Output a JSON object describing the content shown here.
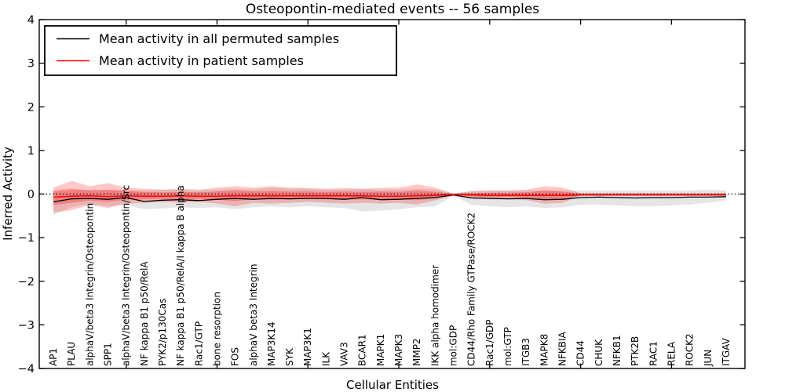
{
  "chart_data": {
    "type": "line",
    "title": "Osteopontin-mediated events -- 56 samples",
    "xlabel": "Cellular Entities",
    "ylabel": "Inferred Activity",
    "ylim": [
      -4,
      4
    ],
    "yticks": [
      4,
      3,
      2,
      1,
      0,
      -1,
      -2,
      -3,
      -4
    ],
    "ytick_labels": [
      "4",
      "3",
      "2",
      "1",
      "0",
      "−1",
      "−2",
      "−3",
      "−4"
    ],
    "grid": false,
    "zero_line": {
      "y": 0,
      "style": "dotted",
      "color": "#000000"
    },
    "legend": {
      "position": "upper-left"
    },
    "categories": [
      "AP1",
      "PLAU",
      "alphaV/beta3 Integrin/Osteopontin",
      "SPP1",
      "alphaV/beta3 Integrin/Osteopontin/Src",
      "NF kappa B1 p50/RelA",
      "PYK2/p130Cas",
      "NF kappa B1 p50/RelA/I kappa B alpha",
      "Rac1/GTP",
      "bone resorption",
      "FOS",
      "alphaV beta3 Integrin",
      "MAP3K14",
      "SYK",
      "MAP3K1",
      "ILK",
      "VAV3",
      "BCAR1",
      "MAPK1",
      "MAPK3",
      "MMP2",
      "IKK alpha homodimer",
      "mol:GDP",
      "CD44/Rho Family GTPase/ROCK2",
      "Rac1/GDP",
      "mol:GTP",
      "ITGB3",
      "MAPK8",
      "NFKBIA",
      "CD44",
      "CHUK",
      "NFKB1",
      "PTK2B",
      "RAC1",
      "RELA",
      "ROCK2",
      "JUN",
      "ITGAV"
    ],
    "series": [
      {
        "name": "Mean activity in all permuted samples",
        "color": "#000000",
        "values": [
          -0.18,
          -0.11,
          -0.1,
          -0.12,
          -0.08,
          -0.17,
          -0.14,
          -0.13,
          -0.15,
          -0.12,
          -0.1,
          -0.12,
          -0.1,
          -0.11,
          -0.1,
          -0.1,
          -0.12,
          -0.08,
          -0.13,
          -0.12,
          -0.1,
          -0.08,
          -0.02,
          -0.09,
          -0.1,
          -0.11,
          -0.1,
          -0.13,
          -0.12,
          -0.08,
          -0.07,
          -0.08,
          -0.09,
          -0.08,
          -0.08,
          -0.07,
          -0.07,
          -0.06
        ]
      },
      {
        "name": "Mean activity in patient samples",
        "color": "#ff0000",
        "values": [
          -0.07,
          -0.05,
          -0.04,
          -0.06,
          -0.04,
          -0.05,
          -0.05,
          -0.04,
          -0.05,
          -0.05,
          -0.04,
          -0.04,
          -0.04,
          -0.04,
          -0.04,
          -0.04,
          -0.04,
          -0.04,
          -0.05,
          -0.05,
          -0.04,
          -0.03,
          -0.01,
          -0.02,
          -0.03,
          -0.03,
          -0.03,
          -0.03,
          -0.03,
          -0.02,
          -0.02,
          -0.02,
          -0.02,
          -0.02,
          -0.02,
          -0.02,
          -0.02,
          -0.02
        ]
      }
    ],
    "bands": [
      {
        "name": "permuted-samples-range",
        "color": "#000000",
        "opacity": 0.1,
        "lower": [
          -0.48,
          -0.3,
          -0.22,
          -0.28,
          -0.25,
          -0.35,
          -0.33,
          -0.3,
          -0.32,
          -0.3,
          -0.35,
          -0.3,
          -0.28,
          -0.3,
          -0.28,
          -0.3,
          -0.32,
          -0.4,
          -0.38,
          -0.35,
          -0.3,
          -0.28,
          -0.04,
          -0.25,
          -0.28,
          -0.3,
          -0.28,
          -0.32,
          -0.3,
          -0.25,
          -0.25,
          -0.26,
          -0.28,
          -0.28,
          -0.26,
          -0.24,
          -0.2,
          -0.15
        ],
        "upper": [
          0.05,
          0.08,
          0.1,
          0.08,
          0.1,
          0.08,
          0.1,
          0.1,
          0.08,
          0.1,
          0.12,
          0.1,
          0.15,
          0.12,
          0.12,
          0.1,
          0.1,
          0.12,
          0.1,
          0.1,
          0.12,
          0.1,
          0.01,
          0.08,
          0.08,
          0.08,
          0.08,
          0.08,
          0.08,
          0.08,
          0.08,
          0.08,
          0.08,
          0.08,
          0.08,
          0.08,
          0.1,
          0.08
        ]
      },
      {
        "name": "patient-samples-range-outer",
        "color": "#ff0000",
        "opacity": 0.22,
        "lower": [
          -0.42,
          -0.37,
          -0.25,
          -0.32,
          -0.22,
          -0.2,
          -0.18,
          -0.2,
          -0.18,
          -0.22,
          -0.28,
          -0.2,
          -0.22,
          -0.2,
          -0.18,
          -0.2,
          -0.22,
          -0.2,
          -0.22,
          -0.2,
          -0.24,
          -0.15,
          -0.03,
          -0.1,
          -0.12,
          -0.12,
          -0.14,
          -0.22,
          -0.2,
          -0.04,
          -0.04,
          -0.04,
          -0.04,
          -0.04,
          -0.04,
          -0.04,
          -0.04,
          -0.04
        ],
        "upper": [
          0.15,
          0.3,
          0.18,
          0.25,
          0.15,
          0.12,
          0.1,
          0.12,
          0.1,
          0.15,
          0.18,
          0.15,
          0.18,
          0.15,
          0.14,
          0.12,
          0.14,
          0.12,
          0.14,
          0.15,
          0.22,
          0.15,
          0.01,
          0.06,
          0.08,
          0.08,
          0.1,
          0.18,
          0.15,
          0.02,
          0.02,
          0.02,
          0.02,
          0.02,
          0.02,
          0.02,
          0.02,
          0.02
        ]
      },
      {
        "name": "patient-samples-range-inner",
        "color": "#ff0000",
        "opacity": 0.28,
        "lower": [
          -0.25,
          -0.2,
          -0.15,
          -0.18,
          -0.13,
          -0.12,
          -0.11,
          -0.12,
          -0.11,
          -0.13,
          -0.16,
          -0.12,
          -0.13,
          -0.12,
          -0.11,
          -0.12,
          -0.13,
          -0.12,
          -0.13,
          -0.12,
          -0.14,
          -0.1,
          -0.02,
          -0.06,
          -0.07,
          -0.07,
          -0.08,
          -0.12,
          -0.11,
          -0.03,
          -0.03,
          -0.03,
          -0.03,
          -0.03,
          -0.03,
          -0.03,
          -0.03,
          -0.03
        ],
        "upper": [
          0.08,
          0.12,
          0.08,
          0.1,
          0.07,
          0.05,
          0.04,
          0.05,
          0.04,
          0.06,
          0.08,
          0.06,
          0.07,
          0.06,
          0.06,
          0.05,
          0.06,
          0.05,
          0.06,
          0.05,
          0.08,
          0.05,
          0.005,
          0.02,
          0.03,
          0.03,
          0.04,
          0.08,
          0.06,
          0.01,
          0.01,
          0.01,
          0.01,
          0.01,
          0.01,
          0.01,
          0.01,
          0.01
        ]
      }
    ]
  }
}
